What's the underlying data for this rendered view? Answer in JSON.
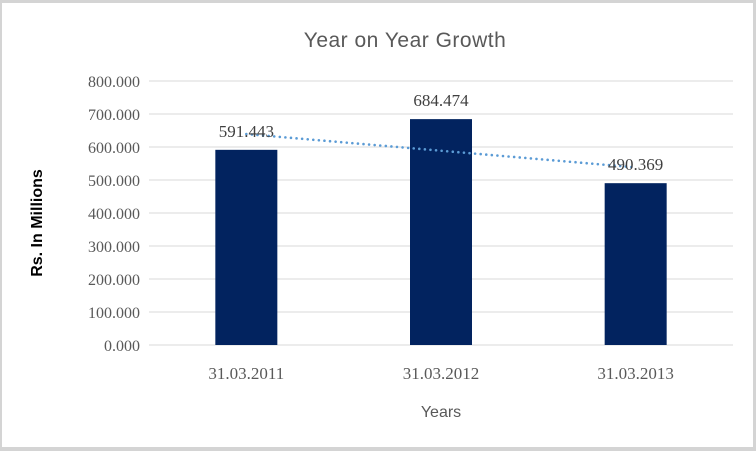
{
  "chart_data": {
    "type": "bar",
    "title": "Year on Year Growth",
    "xlabel": "Years",
    "ylabel": "Rs. In Millions",
    "categories": [
      "31.03.2011",
      "31.03.2012",
      "31.03.2013"
    ],
    "values": [
      591.443,
      684.474,
      490.369
    ],
    "value_labels": [
      "591.443",
      "684.474",
      "490.369"
    ],
    "ylim": [
      0,
      800
    ],
    "ytick_labels": [
      "0.000",
      "100.000",
      "200.000",
      "300.000",
      "400.000",
      "500.000",
      "600.000",
      "700.000",
      "800.000"
    ],
    "grid": true,
    "legend": "none",
    "trendline": {
      "type": "linear",
      "style": "dotted",
      "computed_from": "values"
    },
    "colors": {
      "bar": "#02235F",
      "trendline": "#5B9BD5",
      "gridline": "#D9D9D9",
      "title_text": "#595959",
      "tick_text": "#595959",
      "data_label_text": "#3F3F3F",
      "axis_title_text": "#000000",
      "frame": "#D4D4D4"
    }
  }
}
